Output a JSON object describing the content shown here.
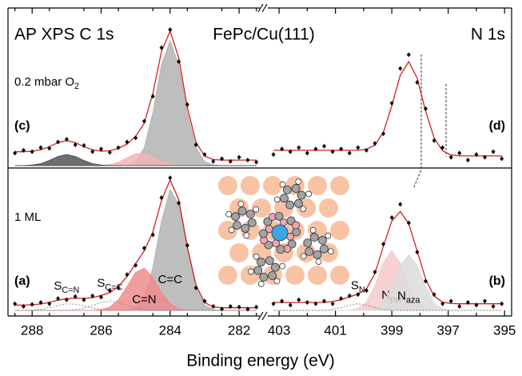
{
  "figure": {
    "title": "FePc/Cu(111)",
    "xlabel": "Binding energy (eV)"
  },
  "chart_data": [
    {
      "type": "spectrum",
      "title": "AP XPS  C 1s",
      "condition": {
        "main": "0.2 mbar O",
        "sub": "2"
      },
      "label": "(c)",
      "x": [
        288.5,
        288.25,
        288.0,
        287.75,
        287.5,
        287.25,
        287.0,
        286.75,
        286.5,
        286.25,
        286.0,
        285.75,
        285.5,
        285.25,
        285.0,
        284.75,
        284.5,
        284.25,
        284.0,
        283.75,
        283.5,
        283.25,
        283.0,
        282.75,
        282.5,
        282.25,
        282.0,
        281.75,
        281.5
      ],
      "xlim": [
        288.7,
        281.4
      ],
      "ylim": [
        0,
        105
      ],
      "series": [
        {
          "style": "area",
          "color": "#b3b3b3",
          "values": [
            0,
            0,
            0,
            0,
            0,
            0,
            0,
            0,
            0,
            0,
            0,
            0,
            0,
            0,
            2.8,
            12.8,
            37.9,
            72.5,
            90,
            72.5,
            37.9,
            12.8,
            2.8,
            0.4,
            0,
            0,
            0,
            0,
            0
          ]
        },
        {
          "style": "area",
          "color": "#f4b4b4",
          "values": [
            0,
            0,
            0,
            0,
            0,
            0,
            0,
            0,
            0,
            0,
            0,
            0.7,
            2.4,
            5.5,
            8.4,
            8.7,
            6.1,
            2.9,
            0.9,
            0.2,
            0,
            0,
            0,
            0,
            0,
            0,
            0,
            0,
            0
          ]
        },
        {
          "style": "area",
          "color": "#555555",
          "values": [
            0,
            0,
            0.4,
            1.4,
            3.7,
            6.6,
            8,
            6.6,
            3.7,
            1.4,
            0.4,
            0,
            0,
            0,
            0,
            0,
            0,
            0,
            0,
            0,
            0,
            0,
            0,
            0,
            0,
            0,
            0,
            0,
            0
          ]
        },
        {
          "style": "line",
          "color": "#d42020",
          "values": [
            10,
            10,
            10.4,
            11.4,
            13.7,
            16.6,
            18,
            16.6,
            13.7,
            11.4,
            10.4,
            10.7,
            12.4,
            15.5,
            21.2,
            30.5,
            52,
            82.4,
            96.9,
            77.7,
            41.9,
            16.8,
            6.8,
            4.4,
            4,
            4,
            4,
            4,
            4
          ]
        },
        {
          "style": "points",
          "color": "#000000",
          "values": [
            9,
            11,
            10,
            13,
            12.5,
            17,
            19,
            15,
            14.5,
            10,
            12,
            9.5,
            13,
            17,
            20,
            32,
            50,
            85,
            98,
            75,
            44,
            15,
            8,
            3,
            5,
            3,
            6,
            4,
            2.5
          ]
        }
      ]
    },
    {
      "type": "spectrum",
      "title": "N 1s",
      "label": "(d)",
      "x": [
        403.2,
        402.9,
        402.6,
        402.3,
        402.0,
        401.7,
        401.4,
        401.1,
        400.8,
        400.5,
        400.2,
        399.9,
        399.6,
        399.3,
        399.0,
        398.7,
        398.4,
        398.1,
        397.8,
        397.5,
        397.2,
        396.9,
        396.6,
        396.3,
        396.0,
        395.7,
        395.4,
        395.1
      ],
      "xlim": [
        403.4,
        394.75
      ],
      "ylim": [
        0,
        105
      ],
      "series": [
        {
          "style": "line",
          "color": "#d42020",
          "values": [
            11,
            11,
            11,
            11,
            11,
            11,
            11,
            11,
            11,
            11,
            11,
            11.7,
            14.7,
            24.1,
            43.1,
            65.1,
            75,
            63.1,
            39.1,
            20.1,
            10.7,
            7.7,
            7,
            7,
            7,
            7,
            7,
            7
          ]
        },
        {
          "style": "points",
          "color": "#000000",
          "values": [
            8,
            12,
            10,
            13,
            9,
            12,
            14,
            10,
            12,
            9,
            13,
            11,
            16,
            23,
            45,
            70,
            80,
            60,
            41,
            18,
            13,
            6,
            9,
            4,
            8,
            6,
            10,
            5
          ]
        }
      ]
    },
    {
      "type": "spectrum",
      "condition": "1 ML",
      "label": "(a)",
      "x": [
        288.5,
        288.25,
        288.0,
        287.75,
        287.5,
        287.25,
        287.0,
        286.75,
        286.5,
        286.25,
        286.0,
        285.75,
        285.5,
        285.25,
        285.0,
        284.75,
        284.5,
        284.25,
        284.0,
        283.75,
        283.5,
        283.25,
        283.0,
        282.75,
        282.5,
        282.25,
        282.0,
        281.75,
        281.5
      ],
      "xlim": [
        288.7,
        281.4
      ],
      "ylim": [
        0,
        105
      ],
      "xticks": [
        288,
        286,
        284,
        282
      ],
      "xminorticks": [
        288.5,
        287.5,
        286.5,
        285.5,
        284.5,
        283.5,
        282.5,
        281.5
      ],
      "series": [
        {
          "style": "area",
          "color": "#b3b3b3",
          "label": "C=C",
          "values": [
            0,
            0,
            0,
            0,
            0,
            0,
            0,
            0,
            0,
            0,
            0,
            0,
            0,
            0.3,
            2.0,
            10.0,
            32.3,
            67.3,
            91.2,
            80.1,
            45.6,
            16.9,
            4.0,
            0.6,
            0,
            0,
            0,
            0,
            0
          ]
        },
        {
          "style": "area",
          "color": "#f08c8c",
          "label": "C=N",
          "values": [
            0,
            0,
            0,
            0,
            0,
            0,
            0,
            0,
            0,
            0,
            0.6,
            2.4,
            7.9,
            18.0,
            28.6,
            31.8,
            24.8,
            13.6,
            5.2,
            1.4,
            0.2,
            0,
            0,
            0,
            0,
            0,
            0,
            0,
            0
          ]
        },
        {
          "style": "dashed",
          "color": "#8c8c8c",
          "label": {
            "main": "S",
            "sub": "C=C"
          },
          "values": [
            0,
            0,
            0,
            0,
            0,
            0,
            0,
            0.6,
            1.7,
            3.8,
            6.0,
            7,
            6.0,
            3.8,
            1.7,
            0.6,
            0,
            0,
            0,
            0,
            0,
            0,
            0,
            0,
            0,
            0,
            0,
            0,
            0
          ]
        },
        {
          "style": "dashed",
          "color": "#8c8c8c",
          "label": {
            "main": "S",
            "sub": "C=N"
          },
          "values": [
            0,
            0,
            0.3,
            0.8,
            2.1,
            3.7,
            4.9,
            4.7,
            3.4,
            1.8,
            0.7,
            0,
            0,
            0,
            0,
            0,
            0,
            0,
            0,
            0,
            0,
            0,
            0,
            0,
            0,
            0,
            0,
            0,
            0
          ]
        },
        {
          "style": "line",
          "color": "#d42020",
          "values": [
            4,
            4,
            4.3,
            4.8,
            6.1,
            7.7,
            8.9,
            9.3,
            9.1,
            9.6,
            11.3,
            13.4,
            17.9,
            25.6,
            35.3,
            44.9,
            59.1,
            82.9,
            98.4,
            83.5,
            47.8,
            18.9,
            6,
            2.6,
            2,
            2,
            2,
            2,
            2
          ]
        },
        {
          "style": "points",
          "color": "#000000",
          "values": [
            5,
            3,
            4.5,
            6,
            5,
            9,
            8,
            10.5,
            8,
            11,
            10,
            15,
            17,
            27,
            34,
            47,
            57,
            85,
            100,
            81,
            49,
            17,
            7,
            3,
            1,
            3,
            2.5,
            1,
            2.5
          ]
        }
      ]
    },
    {
      "type": "spectrum",
      "label": "(b)",
      "x": [
        403.2,
        402.9,
        402.6,
        402.3,
        402.0,
        401.7,
        401.4,
        401.1,
        400.8,
        400.5,
        400.2,
        399.9,
        399.6,
        399.3,
        399.0,
        398.7,
        398.4,
        398.1,
        397.8,
        397.5,
        397.2,
        396.9,
        396.6,
        396.3,
        396.0,
        395.7,
        395.4,
        395.1
      ],
      "xlim": [
        403.4,
        394.75
      ],
      "ylim": [
        0,
        105
      ],
      "xticks": [
        403,
        401,
        399,
        397,
        395
      ],
      "xminorticks": [
        402,
        400,
        398,
        396
      ],
      "series": [
        {
          "style": "area",
          "color": "#f5caca",
          "label": {
            "main": "N",
            "sub": "pyr"
          },
          "values": [
            0,
            0,
            0,
            0,
            0,
            0,
            0,
            0,
            0,
            0.2,
            1.3,
            6.1,
            18.5,
            36.0,
            45,
            36.0,
            18.5,
            6.1,
            1.3,
            0.2,
            0,
            0,
            0,
            0,
            0,
            0,
            0,
            0
          ]
        },
        {
          "style": "area",
          "color": "#dcdcdc",
          "label": {
            "main": "N",
            "sub": "aza"
          },
          "values": [
            0,
            0,
            0,
            0,
            0,
            0,
            0,
            0,
            0,
            0,
            0,
            0.2,
            1.2,
            5.7,
            17.3,
            33.6,
            42,
            33.6,
            17.3,
            5.7,
            1.2,
            0.2,
            0,
            0,
            0,
            0,
            0,
            0
          ]
        },
        {
          "style": "dashed",
          "color": "#8c8c8c",
          "label": {
            "main": "S",
            "sub": "N"
          },
          "values": [
            0,
            0,
            0,
            0,
            0,
            0,
            0.1,
            0.7,
            2.1,
            4.0,
            5,
            4.0,
            2.1,
            0.7,
            0.1,
            0,
            0,
            0,
            0,
            0,
            0,
            0,
            0,
            0,
            0,
            0,
            0,
            0
          ]
        },
        {
          "style": "line",
          "color": "#d42020",
          "values": [
            6,
            6,
            6,
            6,
            6,
            6,
            6.1,
            6.7,
            8.1,
            10.2,
            12.3,
            16.3,
            27.8,
            48.4,
            67.4,
            74.6,
            65.5,
            44.7,
            23.6,
            10.9,
            6.2,
            5.2,
            5,
            5,
            5,
            5,
            5,
            5
          ]
        },
        {
          "style": "points",
          "color": "#000000",
          "values": [
            5,
            7,
            4,
            8,
            6,
            5,
            7,
            5,
            9,
            11,
            12,
            15,
            29,
            50,
            70,
            80,
            66,
            44,
            22,
            12,
            5,
            7,
            3,
            6,
            4,
            7,
            3,
            5
          ]
        }
      ]
    }
  ]
}
